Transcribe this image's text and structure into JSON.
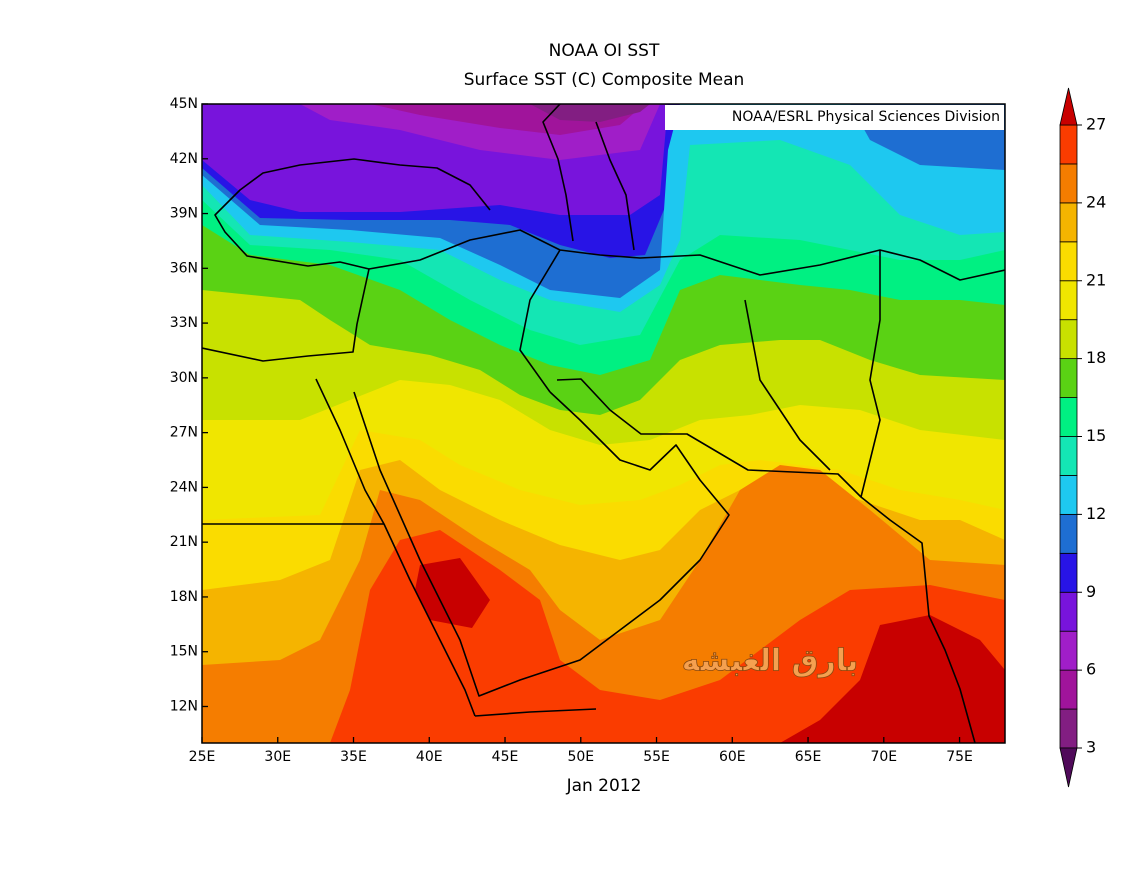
{
  "chart_data": {
    "type": "contour_map",
    "title": "NOAA OI SST",
    "subtitle": "Surface SST (C) Composite Mean",
    "credit": "NOAA/ESRL Physical Sciences Division",
    "x_label": "Jan 2012",
    "watermark": "بارق الغبشه",
    "xlim": [
      25,
      78
    ],
    "ylim": [
      10,
      45
    ],
    "xticks": [
      {
        "value": 25,
        "label": "25E"
      },
      {
        "value": 30,
        "label": "30E"
      },
      {
        "value": 35,
        "label": "35E"
      },
      {
        "value": 40,
        "label": "40E"
      },
      {
        "value": 45,
        "label": "45E"
      },
      {
        "value": 50,
        "label": "50E"
      },
      {
        "value": 55,
        "label": "55E"
      },
      {
        "value": 60,
        "label": "60E"
      },
      {
        "value": 65,
        "label": "65E"
      },
      {
        "value": 70,
        "label": "70E"
      },
      {
        "value": 75,
        "label": "75E"
      }
    ],
    "yticks": [
      {
        "value": 12,
        "label": "12N"
      },
      {
        "value": 15,
        "label": "15N"
      },
      {
        "value": 18,
        "label": "18N"
      },
      {
        "value": 21,
        "label": "21N"
      },
      {
        "value": 24,
        "label": "24N"
      },
      {
        "value": 27,
        "label": "27N"
      },
      {
        "value": 30,
        "label": "30N"
      },
      {
        "value": 33,
        "label": "33N"
      },
      {
        "value": 36,
        "label": "36N"
      },
      {
        "value": 39,
        "label": "39N"
      },
      {
        "value": 42,
        "label": "42N"
      },
      {
        "value": 45,
        "label": "45N"
      }
    ],
    "colorbar": {
      "clim": [
        3,
        27
      ],
      "ticks": [
        3,
        6,
        9,
        12,
        15,
        18,
        21,
        24,
        27
      ],
      "under_color": "#500a5a",
      "over_color": "#c80000",
      "colors": [
        "#821e82",
        "#a0149b",
        "#a01ec8",
        "#7814dc",
        "#2814e6",
        "#1e6ed2",
        "#1ec8f0",
        "#14e6b4",
        "#00f082",
        "#5ad214",
        "#c8e100",
        "#f0e600",
        "#fadc00",
        "#f5b400",
        "#f57d00",
        "#fa3c00"
      ]
    }
  }
}
